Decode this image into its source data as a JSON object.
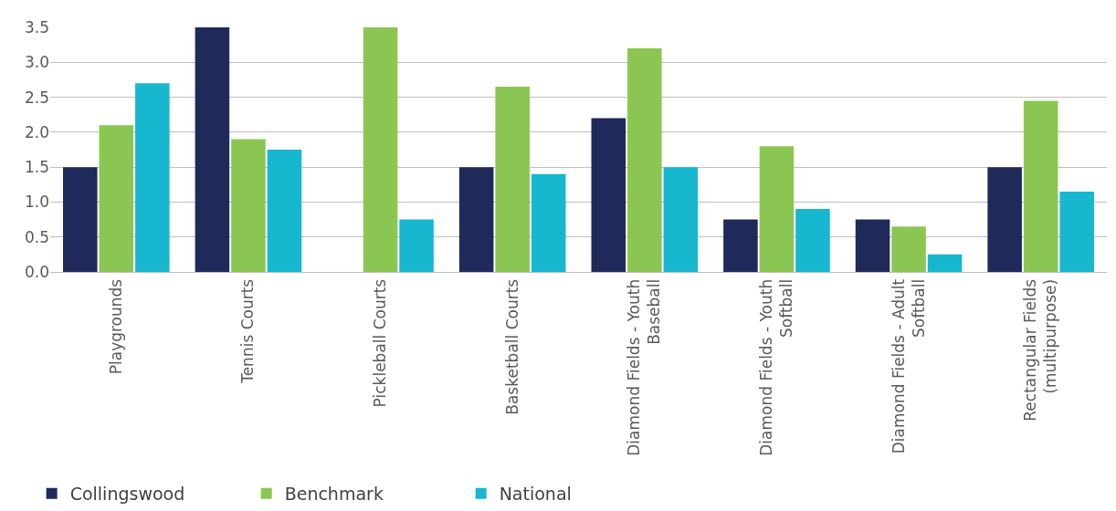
{
  "chart_data": {
    "type": "bar",
    "categories": [
      "Playgrounds",
      "Tennis Courts",
      "Pickleball Courts",
      "Basketball Courts",
      "Diamond Fields - Youth Baseball",
      "Diamond Fields - Youth Softball",
      "Diamond Fields - Adult Softball",
      "Rectangular Fields (multipurpose)"
    ],
    "series": [
      {
        "name": "Collingswood",
        "color": "#1f2a5a",
        "values": [
          1.5,
          3.5,
          0,
          1.5,
          2.2,
          0.75,
          0.75,
          1.5
        ]
      },
      {
        "name": "Benchmark",
        "color": "#8bc653",
        "values": [
          2.1,
          1.9,
          3.5,
          2.65,
          3.2,
          1.8,
          0.65,
          2.45
        ]
      },
      {
        "name": "National",
        "color": "#17b8cf",
        "values": [
          2.7,
          1.75,
          0.75,
          1.4,
          1.5,
          0.9,
          0.25,
          1.15
        ]
      }
    ],
    "ylim": [
      0,
      3.5
    ],
    "yticks": [
      {
        "value": 0,
        "label": "0.0"
      },
      {
        "value": 0.5,
        "label": "0.5"
      },
      {
        "value": 1,
        "label": "1.0"
      },
      {
        "value": 1.5,
        "label": "1.5"
      },
      {
        "value": 2,
        "label": "2.0"
      },
      {
        "value": 2.5,
        "label": "2.5"
      },
      {
        "value": 3,
        "label": "3.0"
      },
      {
        "value": 3.5,
        "label": "3.5"
      }
    ],
    "grid": true,
    "legend": "bottom left"
  }
}
